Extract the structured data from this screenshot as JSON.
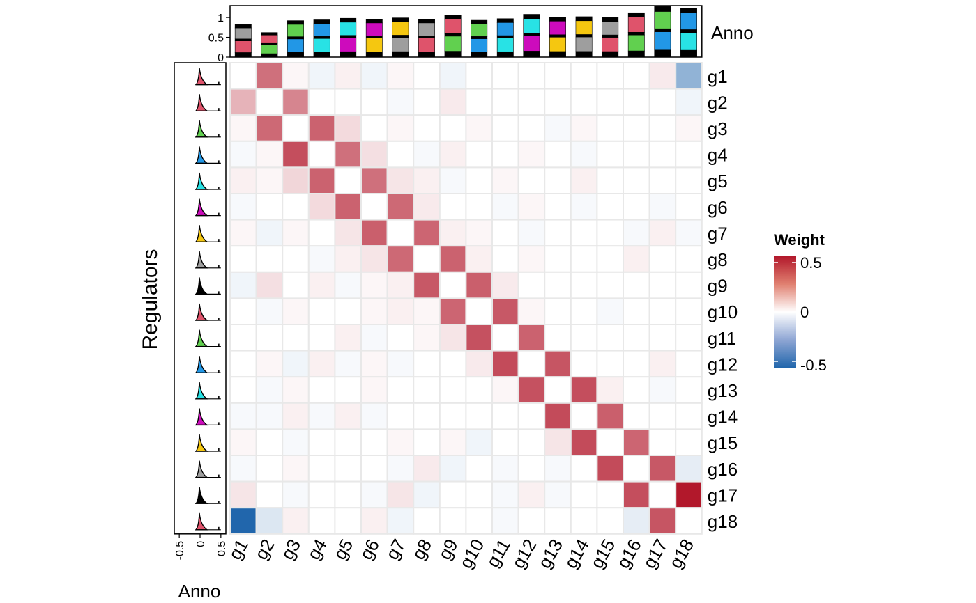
{
  "chart_data": {
    "type": "heatmap",
    "row_title": "Regulators",
    "genes": [
      "g1",
      "g2",
      "g3",
      "g4",
      "g5",
      "g6",
      "g7",
      "g8",
      "g9",
      "g10",
      "g11",
      "g12",
      "g13",
      "g14",
      "g15",
      "g16",
      "g17",
      "g18"
    ],
    "matrix": [
      [
        0,
        0.33,
        0.01,
        -0.02,
        0.02,
        -0.02,
        0.01,
        0,
        -0.02,
        0,
        0,
        0,
        0,
        0,
        0,
        0,
        0.03,
        -0.25
      ],
      [
        0.15,
        0,
        0.27,
        0,
        0,
        0,
        -0.01,
        0,
        0.03,
        0,
        0,
        0,
        0,
        0,
        0,
        0,
        0,
        -0.02
      ],
      [
        0.01,
        0.35,
        0,
        0.37,
        0.06,
        0,
        0.01,
        0,
        0,
        0.01,
        0,
        0,
        -0.01,
        0.01,
        0,
        0,
        0,
        0.01
      ],
      [
        -0.01,
        0.01,
        0.43,
        0,
        0.33,
        0.05,
        0,
        -0.01,
        0.02,
        0,
        0,
        0.01,
        0,
        -0.01,
        0,
        0,
        0,
        0
      ],
      [
        0.02,
        0.01,
        0.07,
        0.37,
        0,
        0.33,
        0.04,
        0.02,
        -0.01,
        0,
        0.01,
        0,
        0,
        0.02,
        0,
        0,
        0,
        0
      ],
      [
        -0.01,
        0,
        0,
        0.06,
        0.37,
        0,
        0.35,
        0.03,
        0,
        0,
        -0.01,
        0.01,
        0,
        -0.01,
        0,
        0,
        -0.01,
        0
      ],
      [
        0.01,
        -0.02,
        0.01,
        0,
        0.04,
        0.38,
        0,
        0.36,
        0.02,
        0.01,
        0,
        -0.01,
        0,
        0,
        0,
        -0.01,
        0.02,
        -0.01
      ],
      [
        0,
        0,
        0,
        -0.01,
        0.02,
        0.04,
        0.35,
        0,
        0.37,
        0.02,
        0,
        0.01,
        0,
        0,
        0,
        0.02,
        0,
        0
      ],
      [
        -0.02,
        0.05,
        0,
        0.02,
        -0.01,
        0.01,
        0.02,
        0.4,
        0,
        0.38,
        0.03,
        0,
        0,
        0,
        0,
        0,
        0,
        0
      ],
      [
        0,
        -0.01,
        0.01,
        0,
        0,
        0.01,
        0.02,
        0.01,
        0.36,
        0,
        0.4,
        0.01,
        0,
        0,
        -0.01,
        0,
        0,
        0
      ],
      [
        0,
        0,
        0,
        0,
        0.02,
        -0.01,
        0,
        0.01,
        0.04,
        0.42,
        0,
        0.37,
        0,
        0,
        0,
        0,
        0,
        0
      ],
      [
        0,
        0.01,
        -0.02,
        0.02,
        -0.01,
        0.01,
        -0.01,
        0,
        0,
        0.03,
        0.44,
        0,
        0.41,
        0,
        0,
        0,
        0.02,
        0
      ],
      [
        0,
        -0.01,
        0.01,
        0,
        0,
        0.01,
        0,
        0,
        0,
        0,
        0.01,
        0.42,
        0,
        0.43,
        0.02,
        0,
        -0.01,
        0
      ],
      [
        -0.01,
        -0.01,
        0.02,
        -0.01,
        0.02,
        -0.01,
        0,
        0,
        0,
        0,
        0,
        0,
        0.44,
        0,
        0.38,
        0,
        0,
        0
      ],
      [
        0.01,
        0,
        -0.01,
        0,
        0,
        0,
        0.01,
        0,
        0.01,
        -0.02,
        0,
        0,
        0.04,
        0.44,
        0,
        0.36,
        0,
        0
      ],
      [
        -0.01,
        0,
        0.01,
        0,
        0,
        0,
        -0.01,
        0.03,
        -0.02,
        0,
        -0.01,
        0,
        -0.01,
        0,
        0.44,
        0,
        0.4,
        -0.04
      ],
      [
        0.04,
        0,
        -0.01,
        0,
        0,
        -0.01,
        0.04,
        -0.02,
        0,
        0,
        -0.01,
        0.02,
        -0.01,
        0,
        0,
        0.43,
        0,
        0.62
      ],
      [
        -0.62,
        -0.06,
        0.02,
        0,
        0,
        0.02,
        -0.02,
        0,
        0,
        0,
        -0.01,
        0,
        0,
        0,
        0,
        -0.04,
        0.41,
        0
      ]
    ],
    "legend": {
      "title": "Weight",
      "ticks": [
        "0.5",
        "0",
        "-0.5"
      ],
      "range": [
        -0.6,
        0.6
      ],
      "placement": "right"
    },
    "colors": {
      "low": "#2166ac",
      "mid": "#ffffff",
      "high": "#b2182b",
      "grid": "#e8e8e8"
    },
    "top_annotation": {
      "label": "Anno",
      "y_ticks": [
        "1",
        "0.5",
        "0"
      ],
      "ylim": [
        0,
        1.3
      ],
      "totals": [
        0.82,
        0.62,
        0.92,
        0.94,
        0.98,
        0.96,
        0.99,
        0.96,
        1.06,
        0.93,
        0.97,
        1.08,
        1.01,
        1.02,
        1.0,
        1.12,
        1.28,
        1.24
      ],
      "segment_colors": [
        "#000000",
        "#df536b",
        "#61d04f",
        "#2297e6",
        "#28e2e5",
        "#cd0bbc",
        "#f5c710",
        "#9e9e9e"
      ]
    },
    "left_annotation": {
      "label": "Anno",
      "x_ticks": [
        "-0.5",
        "0",
        "0.5"
      ],
      "xlim": [
        -0.62,
        0.62
      ],
      "peak_colors": [
        "#df536b",
        "#df536b",
        "#61d04f",
        "#2297e6",
        "#28e2e5",
        "#cd0bbc",
        "#f5c710",
        "#9e9e9e",
        "#000000",
        "#df536b",
        "#61d04f",
        "#2297e6",
        "#28e2e5",
        "#cd0bbc",
        "#f5c710",
        "#9e9e9e",
        "#000000",
        "#df536b"
      ]
    }
  }
}
